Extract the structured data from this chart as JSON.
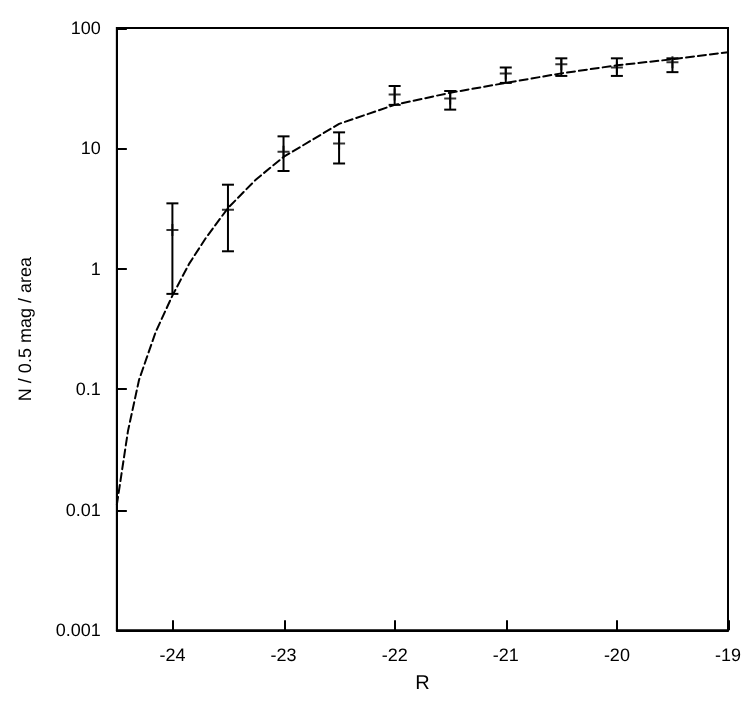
{
  "chart_data": {
    "type": "scatter",
    "xlabel": "R",
    "ylabel": "N / 0.5 mag / area",
    "log": "y",
    "grid": false,
    "xlim": [
      -24.5,
      -19
    ],
    "xticks": [
      -24,
      -23,
      -22,
      -21,
      -20,
      -19
    ],
    "ylim": [
      0.001,
      100
    ],
    "yticks": [
      0.001,
      0.01,
      0.1,
      1,
      10,
      100
    ],
    "series": [
      {
        "color": "#000000",
        "marker": "cross",
        "x": [
          -24,
          -23.5,
          -23,
          -22.5,
          -22,
          -21.5,
          -21,
          -20.5,
          -20,
          -19.5
        ],
        "values": [
          2.1,
          3.1,
          9.4,
          11,
          28,
          26,
          42,
          50,
          47,
          52
        ],
        "errors": [
          [
            0.62,
            3.5
          ],
          [
            1.4,
            5
          ],
          [
            6.5,
            12.6
          ],
          [
            7.5,
            13.6
          ],
          [
            23,
            33
          ],
          [
            21,
            30
          ],
          [
            35,
            47
          ],
          [
            40,
            56
          ],
          [
            40,
            56
          ],
          [
            43,
            56
          ]
        ]
      },
      {
        "type": "line",
        "color": "#000000",
        "line_style": "dashed",
        "marker": "none",
        "x": [
          -24.5,
          -24.4,
          -24.3,
          -24.15,
          -24,
          -23.85,
          -23.7,
          -23.5,
          -23.25,
          -23,
          -22.5,
          -22,
          -21.5,
          -21,
          -20.5,
          -20,
          -19.5,
          -19
        ],
        "values": [
          0.011,
          0.045,
          0.12,
          0.3,
          0.6,
          1.1,
          1.8,
          3.2,
          5.5,
          8.5,
          16,
          23,
          29,
          35,
          42,
          49,
          55,
          63
        ]
      }
    ]
  }
}
